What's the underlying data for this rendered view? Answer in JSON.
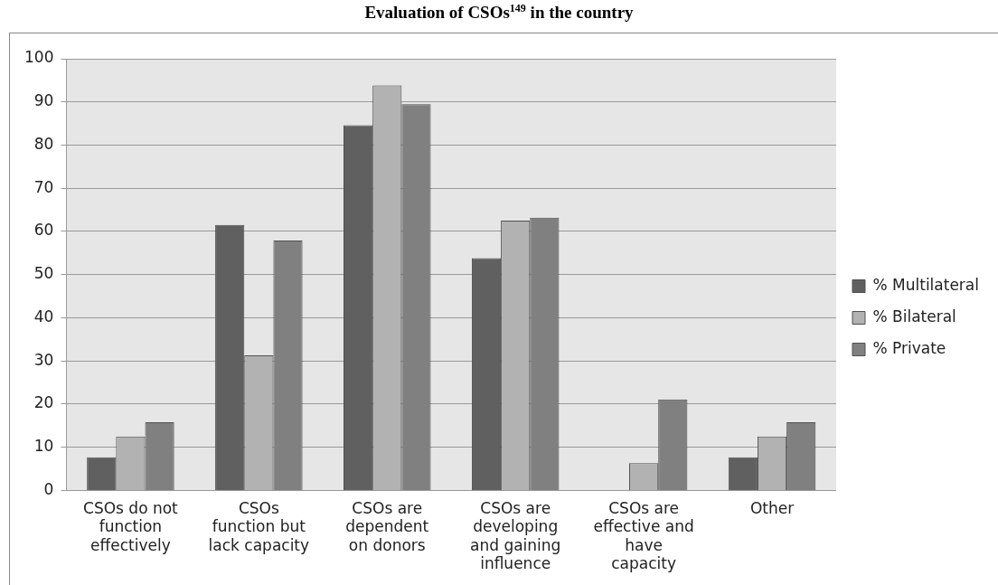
{
  "chart_data": {
    "type": "bar",
    "title": "Evaluation of CSOs$^{149}$ in the country",
    "categories": [
      "CSOs do not function effectively",
      "CSOs function but lack capacity",
      "CSOs are dependent on donors",
      "CSOs are developing and gaining influence",
      "CSOs are effective and have capacity",
      "Other"
    ],
    "series": [
      {
        "name": "% Multilateral",
        "color": "#606060",
        "values": [
          7.7,
          61.5,
          84.6,
          53.8,
          0,
          7.7
        ]
      },
      {
        "name": "% Bilateral",
        "color": "#b2b2b2",
        "values": [
          12.5,
          31.3,
          93.8,
          62.5,
          6.3,
          12.5
        ]
      },
      {
        "name": "% Private",
        "color": "#808080",
        "values": [
          15.8,
          57.9,
          89.5,
          63.2,
          21.1,
          15.8
        ]
      }
    ],
    "ylim": [
      0,
      100
    ],
    "yticks": [
      0,
      10,
      20,
      30,
      40,
      50,
      60,
      70,
      80,
      90,
      100
    ],
    "grid": "y",
    "legend": "right"
  }
}
